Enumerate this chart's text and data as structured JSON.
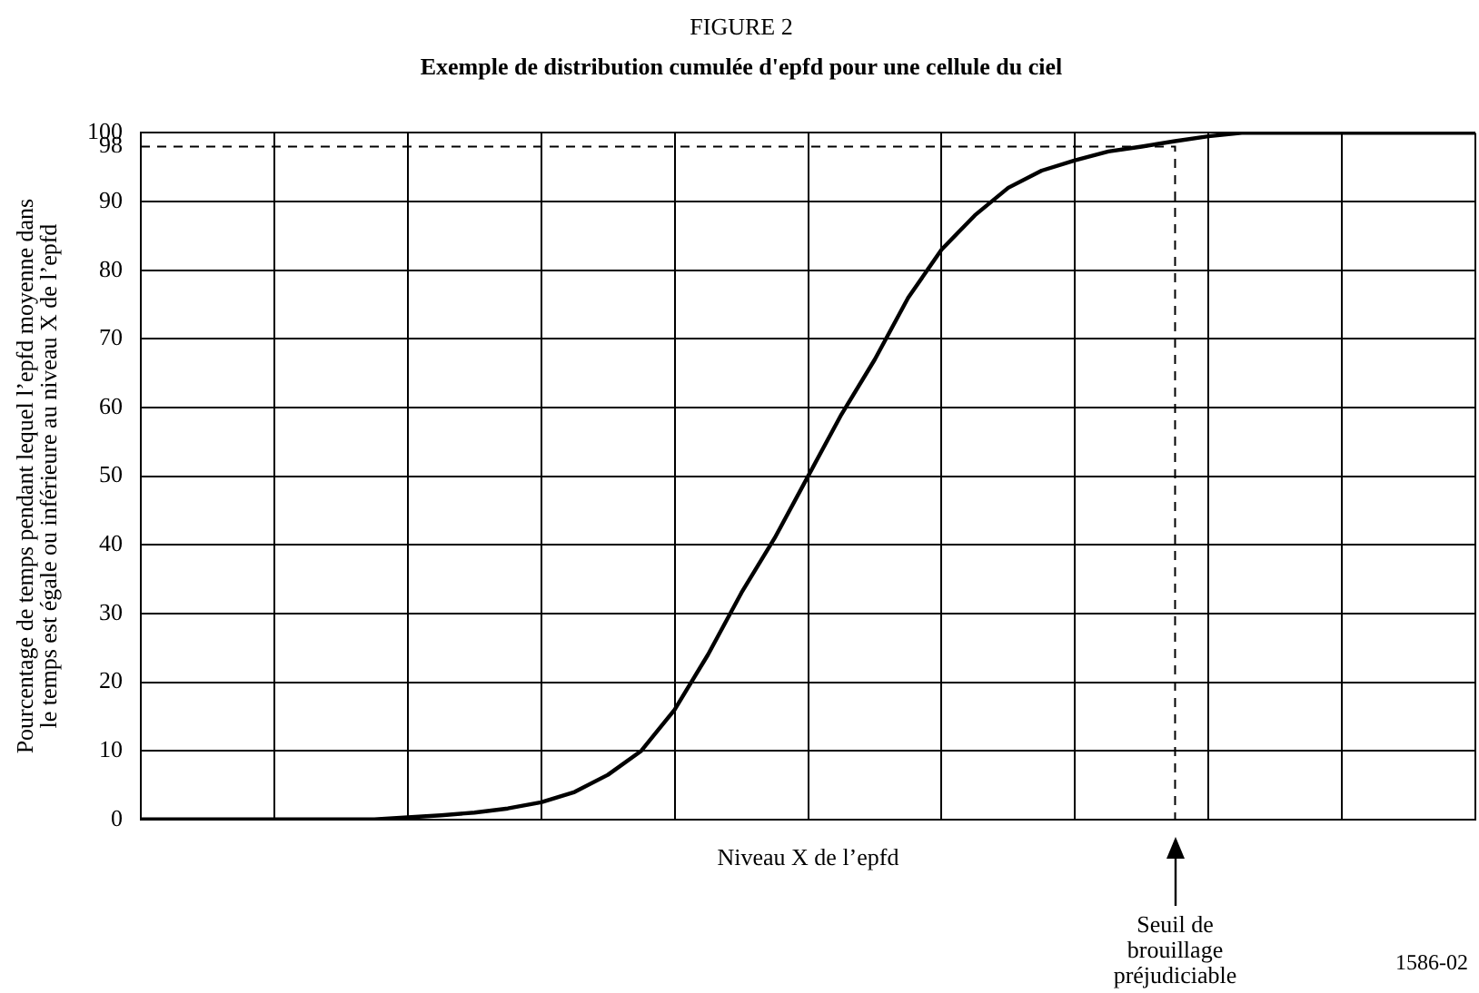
{
  "chart_data": {
    "type": "line",
    "title": "FIGURE 2",
    "subtitle": "Exemple de distribution cumulée d'epfd pour une cellule du ciel",
    "xlabel": "Niveau X de l’epfd",
    "ylabel": "Pourcentage de temps pendant lequel l’epfd moyenne dans le temps est égale ou inférieure au niveau X de l’epfd",
    "categories": [
      null,
      null,
      null,
      null,
      null,
      null,
      null,
      null,
      null,
      null,
      null,
      null,
      null,
      null,
      null,
      null,
      null,
      null,
      null,
      null,
      null,
      null,
      null,
      null,
      null,
      null,
      null,
      null,
      null,
      null,
      null,
      null,
      null,
      null,
      null,
      null,
      null,
      null,
      null,
      null,
      null
    ],
    "series": [
      {
        "color": "#000000",
        "values": [
          0,
          0,
          0,
          0,
          0,
          0,
          0,
          0,
          0.3,
          0.6,
          1,
          1.6,
          2.5,
          4,
          6.5,
          10,
          16,
          24,
          33,
          41,
          50,
          59,
          67,
          76,
          83,
          88,
          92,
          94.5,
          96,
          97.3,
          98,
          98.8,
          99.5,
          100,
          100,
          100,
          100,
          100,
          100,
          100,
          100
        ]
      }
    ],
    "ylim": [
      0,
      100
    ],
    "yticks": [
      0,
      10,
      20,
      30,
      40,
      50,
      60,
      70,
      80,
      90,
      98,
      100
    ],
    "ref_lines": [
      {
        "axis": "y",
        "value": 98,
        "line_style": "dashed"
      }
    ],
    "annotations": [
      "Seuil de brouillage préjudiciable",
      "1586-02"
    ],
    "grid": true,
    "legend": false,
    "marker": "none",
    "line_style": "solid",
    "tick_labels": "y"
  }
}
